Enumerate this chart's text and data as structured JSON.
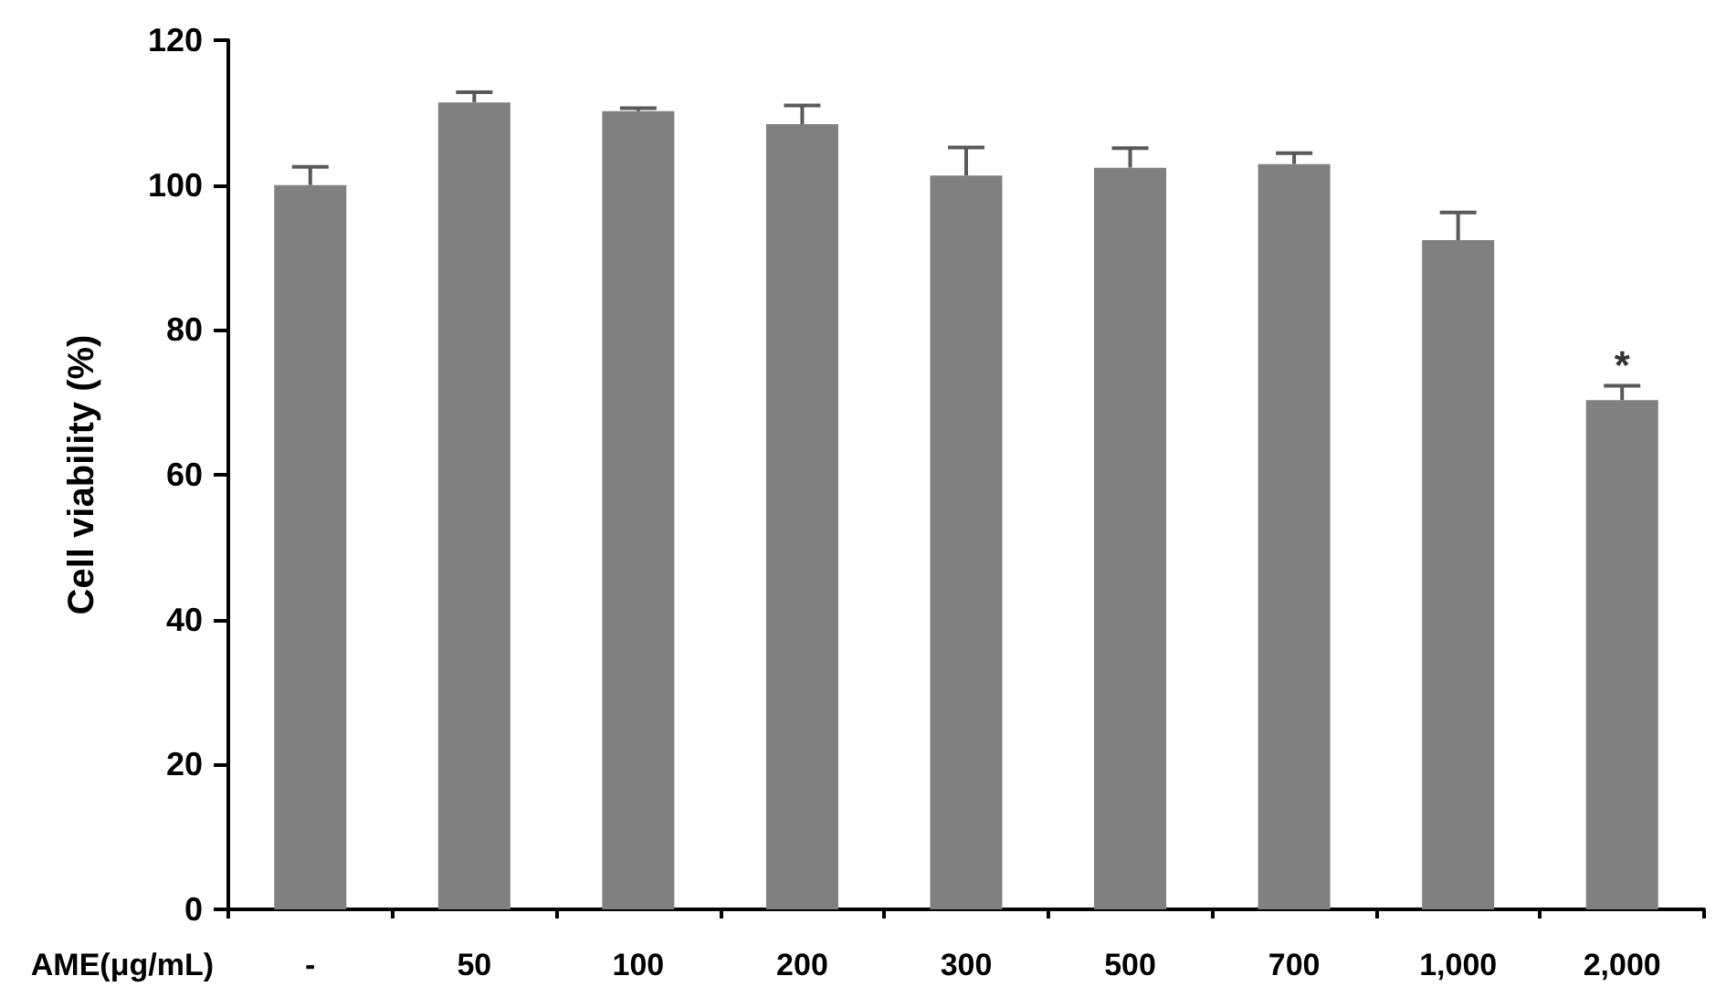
{
  "chart_data": {
    "type": "bar",
    "xlabel": "AME(μg/mL)",
    "ylabel": "Cell viability (%)",
    "categories": [
      "-",
      "50",
      "100",
      "200",
      "300",
      "500",
      "700",
      "1,000",
      "2,000"
    ],
    "values": [
      100,
      111.4,
      110.2,
      108.4,
      101.3,
      102.4,
      102.9,
      92.4,
      70.3
    ],
    "errors": [
      2.5,
      1.4,
      0.4,
      2.6,
      3.9,
      2.7,
      1.5,
      3.8,
      2.0
    ],
    "color": "#808080",
    "ylim": [
      0,
      120
    ],
    "yticks": [
      0,
      20,
      40,
      60,
      80,
      100,
      120
    ],
    "grid": false,
    "annotations": [
      {
        "text": "*",
        "x": "2,000",
        "y": 72.3
      }
    ]
  }
}
